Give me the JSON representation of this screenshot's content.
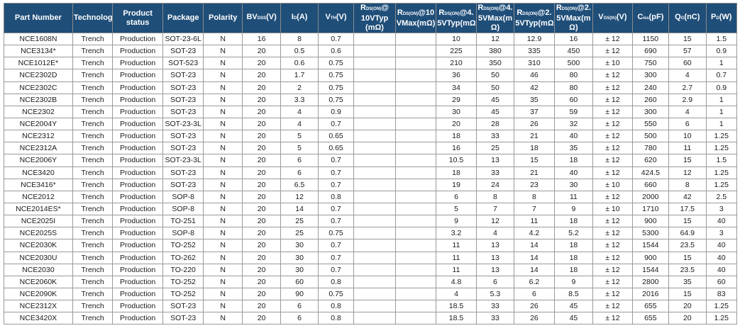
{
  "headers": [
    {
      "main": "Part Number"
    },
    {
      "main": "Technology"
    },
    {
      "main": "Product status"
    },
    {
      "main": "Package"
    },
    {
      "main": "Polarity"
    },
    {
      "pre": "BV",
      "sub": "DSS",
      "post": "(V)"
    },
    {
      "pre": "I",
      "sub": "D",
      "post": "(A)"
    },
    {
      "pre": "V",
      "sub": "TH",
      "post": "(V)"
    },
    {
      "pre": "R",
      "sub": "DS(ON)",
      "post": "@ 10VTyp (mΩ)"
    },
    {
      "pre": "R",
      "sub": "DS(ON)",
      "post": "@10 VMax(mΩ)"
    },
    {
      "pre": "R",
      "sub": "DS(ON)",
      "post": "@4. 5VTyp(mΩ)"
    },
    {
      "pre": "R",
      "sub": "DS(ON)",
      "post": "@4. 5VMax(m Ω)"
    },
    {
      "pre": "R",
      "sub": "DS(ON)",
      "post": "@2. 5VTyp(mΩ)"
    },
    {
      "pre": "R",
      "sub": "DS(ON)",
      "post": "@2. 5VMax(m Ω)"
    },
    {
      "pre": "V",
      "sub": "GS(th)",
      "post": "(V)"
    },
    {
      "pre": "C",
      "sub": "iss",
      "post": "(pF)"
    },
    {
      "pre": "Q",
      "sub": "G",
      "post": "(nC)"
    },
    {
      "pre": "P",
      "sub": "D",
      "post": "(W)"
    }
  ],
  "rows": [
    [
      "NCE1608N",
      "Trench",
      "Production",
      "SOT-23-6L",
      "N",
      "16",
      "8",
      "0.7",
      "",
      "",
      "10",
      "12",
      "12.9",
      "16",
      "± 12",
      "1150",
      "15",
      "1.5"
    ],
    [
      "NCE3134*",
      "Trench",
      "Production",
      "SOT-23",
      "N",
      "20",
      "0.5",
      "0.6",
      "",
      "",
      "225",
      "380",
      "335",
      "450",
      "± 12",
      "690",
      "57",
      "0.9"
    ],
    [
      "NCE1012E*",
      "Trench",
      "Production",
      "SOT-523",
      "N",
      "20",
      "0.6",
      "0.75",
      "",
      "",
      "210",
      "350",
      "310",
      "500",
      "± 10",
      "750",
      "60",
      "1"
    ],
    [
      "NCE2302D",
      "Trench",
      "Production",
      "SOT-23",
      "N",
      "20",
      "1.7",
      "0.75",
      "",
      "",
      "36",
      "50",
      "46",
      "80",
      "± 12",
      "300",
      "4",
      "0.7"
    ],
    [
      "NCE2302C",
      "Trench",
      "Production",
      "SOT-23",
      "N",
      "20",
      "2",
      "0.75",
      "",
      "",
      "34",
      "50",
      "42",
      "80",
      "± 12",
      "240",
      "2.7",
      "0.9"
    ],
    [
      "NCE2302B",
      "Trench",
      "Production",
      "SOT-23",
      "N",
      "20",
      "3.3",
      "0.75",
      "",
      "",
      "29",
      "45",
      "35",
      "60",
      "± 12",
      "260",
      "2.9",
      "1"
    ],
    [
      "NCE2302",
      "Trench",
      "Production",
      "SOT-23",
      "N",
      "20",
      "4",
      "0.9",
      "",
      "",
      "30",
      "45",
      "37",
      "59",
      "± 12",
      "300",
      "4",
      "1"
    ],
    [
      "NCE2004Y",
      "Trench",
      "Production",
      "SOT-23-3L",
      "N",
      "20",
      "4",
      "0.7",
      "",
      "",
      "20",
      "28",
      "26",
      "32",
      "± 12",
      "550",
      "6",
      "1"
    ],
    [
      "NCE2312",
      "Trench",
      "Production",
      "SOT-23",
      "N",
      "20",
      "5",
      "0.65",
      "",
      "",
      "18",
      "33",
      "21",
      "40",
      "± 12",
      "500",
      "10",
      "1.25"
    ],
    [
      "NCE2312A",
      "Trench",
      "Production",
      "SOT-23",
      "N",
      "20",
      "5",
      "0.65",
      "",
      "",
      "16",
      "25",
      "18",
      "35",
      "± 12",
      "780",
      "11",
      "1.25"
    ],
    [
      "NCE2006Y",
      "Trench",
      "Production",
      "SOT-23-3L",
      "N",
      "20",
      "6",
      "0.7",
      "",
      "",
      "10.5",
      "13",
      "15",
      "18",
      "± 12",
      "620",
      "15",
      "1.5"
    ],
    [
      "NCE3420",
      "Trench",
      "Production",
      "SOT-23",
      "N",
      "20",
      "6",
      "0.7",
      "",
      "",
      "18",
      "33",
      "21",
      "40",
      "± 12",
      "424.5",
      "12",
      "1.25"
    ],
    [
      "NCE3416*",
      "Trench",
      "Production",
      "SOT-23",
      "N",
      "20",
      "6.5",
      "0.7",
      "",
      "",
      "19",
      "24",
      "23",
      "30",
      "± 10",
      "660",
      "8",
      "1.25"
    ],
    [
      "NCE2012",
      "Trench",
      "Production",
      "SOP-8",
      "N",
      "20",
      "12",
      "0.8",
      "",
      "",
      "6",
      "8",
      "8",
      "11",
      "± 12",
      "2000",
      "42",
      "2.5"
    ],
    [
      "NCE2014ES*",
      "Trench",
      "Production",
      "SOP-8",
      "N",
      "20",
      "14",
      "0.7",
      "",
      "",
      "5",
      "7",
      "7",
      "9",
      "± 10",
      "1710",
      "17.5",
      "3"
    ],
    [
      "NCE2025I",
      "Trench",
      "Production",
      "TO-251",
      "N",
      "20",
      "25",
      "0.7",
      "",
      "",
      "9",
      "12",
      "11",
      "18",
      "± 12",
      "900",
      "15",
      "40"
    ],
    [
      "NCE2025S",
      "Trench",
      "Production",
      "SOP-8",
      "N",
      "20",
      "25",
      "0.75",
      "",
      "",
      "3.2",
      "4",
      "4.2",
      "5.2",
      "± 12",
      "5300",
      "64.9",
      "3"
    ],
    [
      "NCE2030K",
      "Trench",
      "Production",
      "TO-252",
      "N",
      "20",
      "30",
      "0.7",
      "",
      "",
      "11",
      "13",
      "14",
      "18",
      "± 12",
      "1544",
      "23.5",
      "40"
    ],
    [
      "NCE2030U",
      "Trench",
      "Production",
      "TO-262",
      "N",
      "20",
      "30",
      "0.7",
      "",
      "",
      "11",
      "13",
      "14",
      "18",
      "± 12",
      "900",
      "15",
      "40"
    ],
    [
      "NCE2030",
      "Trench",
      "Production",
      "TO-220",
      "N",
      "20",
      "30",
      "0.7",
      "",
      "",
      "11",
      "13",
      "14",
      "18",
      "± 12",
      "1544",
      "23.5",
      "40"
    ],
    [
      "NCE2060K",
      "Trench",
      "Production",
      "TO-252",
      "N",
      "20",
      "60",
      "0.8",
      "",
      "",
      "4.8",
      "6",
      "6.2",
      "9",
      "± 12",
      "2800",
      "35",
      "60"
    ],
    [
      "NCE2090K",
      "Trench",
      "Production",
      "TO-252",
      "N",
      "20",
      "90",
      "0.75",
      "",
      "",
      "4",
      "5.3",
      "6",
      "8.5",
      "± 12",
      "2016",
      "15",
      "83"
    ],
    [
      "NCE2312X",
      "Trench",
      "Production",
      "SOT-23",
      "N",
      "20",
      "6",
      "0.8",
      "",
      "",
      "18.5",
      "33",
      "26",
      "45",
      "± 12",
      "655",
      "20",
      "1.25"
    ],
    [
      "NCE3420X",
      "Trench",
      "Production",
      "SOT-23",
      "N",
      "20",
      "6",
      "0.8",
      "",
      "",
      "18.5",
      "33",
      "26",
      "45",
      "± 12",
      "655",
      "20",
      "1.25"
    ]
  ]
}
